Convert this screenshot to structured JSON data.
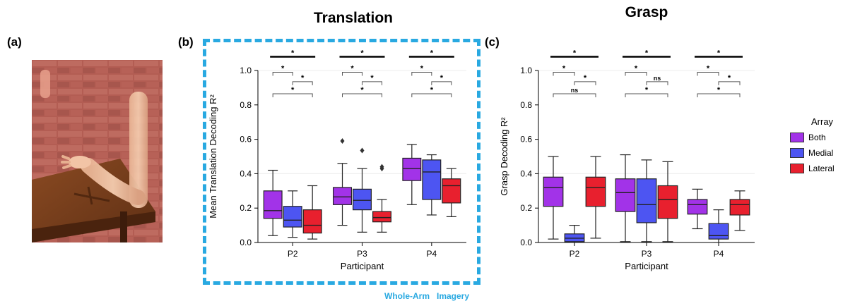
{
  "panels": {
    "a_label": "(a)",
    "b_label": "(b)",
    "c_label": "(c)"
  },
  "titles": {
    "left": "Translation",
    "right": "Grasp"
  },
  "footnote": "Whole-Arm   Imagery",
  "legend": {
    "title": "Array",
    "items": [
      {
        "label": "Both",
        "color": "#a233e8"
      },
      {
        "label": "Medial",
        "color": "#4d55f2"
      },
      {
        "label": "Lateral",
        "color": "#e8202e"
      }
    ]
  },
  "colors": {
    "frame": "#29a9e1",
    "both": "#a233e8",
    "medial": "#4d55f2",
    "lateral": "#e8202e"
  },
  "chart_data": [
    {
      "type": "box",
      "xlabel": "Participant",
      "ylabel": "Mean Translation Decoding R²",
      "ylim": [
        0,
        1.0
      ],
      "yticks": [
        "0.0",
        "0.2",
        "0.4",
        "0.6",
        "0.8",
        "1.0"
      ],
      "categories": [
        "P2",
        "P3",
        "P4"
      ],
      "series": [
        {
          "name": "Both",
          "boxes": [
            {
              "whislo": 0.04,
              "q1": 0.14,
              "med": 0.185,
              "q3": 0.3,
              "whishi": 0.42,
              "fliers": []
            },
            {
              "whislo": 0.1,
              "q1": 0.22,
              "med": 0.265,
              "q3": 0.32,
              "whishi": 0.46,
              "fliers": [
                0.59
              ]
            },
            {
              "whislo": 0.22,
              "q1": 0.36,
              "med": 0.43,
              "q3": 0.49,
              "whishi": 0.57,
              "fliers": []
            }
          ]
        },
        {
          "name": "Medial",
          "boxes": [
            {
              "whislo": 0.03,
              "q1": 0.09,
              "med": 0.13,
              "q3": 0.21,
              "whishi": 0.3,
              "fliers": []
            },
            {
              "whislo": 0.06,
              "q1": 0.19,
              "med": 0.245,
              "q3": 0.31,
              "whishi": 0.43,
              "fliers": [
                0.535
              ]
            },
            {
              "whislo": 0.16,
              "q1": 0.25,
              "med": 0.41,
              "q3": 0.48,
              "whishi": 0.51,
              "fliers": []
            }
          ]
        },
        {
          "name": "Lateral",
          "boxes": [
            {
              "whislo": 0.02,
              "q1": 0.055,
              "med": 0.1,
              "q3": 0.19,
              "whishi": 0.33,
              "fliers": []
            },
            {
              "whislo": 0.06,
              "q1": 0.12,
              "med": 0.145,
              "q3": 0.18,
              "whishi": 0.25,
              "fliers": [
                0.43,
                0.44
              ]
            },
            {
              "whislo": 0.15,
              "q1": 0.23,
              "med": 0.33,
              "q3": 0.37,
              "whishi": 0.43,
              "fliers": []
            }
          ]
        }
      ],
      "significance": [
        {
          "labels": [
            "*",
            "*",
            "*",
            "*"
          ]
        },
        {
          "labels": [
            "*",
            "*",
            "*",
            "*"
          ]
        },
        {
          "labels": [
            "*",
            "*",
            "*",
            "*"
          ]
        }
      ]
    },
    {
      "type": "box",
      "xlabel": "Participant",
      "ylabel": "Grasp Decoding R²",
      "ylim": [
        0,
        1.0
      ],
      "yticks": [
        "0.0",
        "0.2",
        "0.4",
        "0.6",
        "0.8",
        "1.0"
      ],
      "categories": [
        "P2",
        "P3",
        "P4"
      ],
      "series": [
        {
          "name": "Both",
          "boxes": [
            {
              "whislo": 0.02,
              "q1": 0.21,
              "med": 0.32,
              "q3": 0.38,
              "whishi": 0.5,
              "fliers": []
            },
            {
              "whislo": 0.005,
              "q1": 0.18,
              "med": 0.29,
              "q3": 0.37,
              "whishi": 0.51,
              "fliers": []
            },
            {
              "whislo": 0.08,
              "q1": 0.165,
              "med": 0.22,
              "q3": 0.25,
              "whishi": 0.31,
              "fliers": []
            }
          ]
        },
        {
          "name": "Medial",
          "boxes": [
            {
              "whislo": 0.0,
              "q1": 0.005,
              "med": 0.025,
              "q3": 0.05,
              "whishi": 0.1,
              "fliers": []
            },
            {
              "whislo": 0.005,
              "q1": 0.115,
              "med": 0.22,
              "q3": 0.37,
              "whishi": 0.48,
              "fliers": []
            },
            {
              "whislo": 0.0,
              "q1": 0.02,
              "med": 0.04,
              "q3": 0.11,
              "whishi": 0.19,
              "fliers": []
            }
          ]
        },
        {
          "name": "Lateral",
          "boxes": [
            {
              "whislo": 0.025,
              "q1": 0.21,
              "med": 0.32,
              "q3": 0.38,
              "whishi": 0.5,
              "fliers": []
            },
            {
              "whislo": 0.005,
              "q1": 0.14,
              "med": 0.25,
              "q3": 0.33,
              "whishi": 0.47,
              "fliers": []
            },
            {
              "whislo": 0.07,
              "q1": 0.16,
              "med": 0.22,
              "q3": 0.25,
              "whishi": 0.3,
              "fliers": []
            }
          ]
        }
      ],
      "significance": [
        {
          "labels": [
            "*",
            "*",
            "*",
            "ns"
          ]
        },
        {
          "labels": [
            "*",
            "*",
            "ns",
            "*"
          ]
        },
        {
          "labels": [
            "*",
            "*",
            "*",
            "*"
          ]
        }
      ]
    }
  ]
}
